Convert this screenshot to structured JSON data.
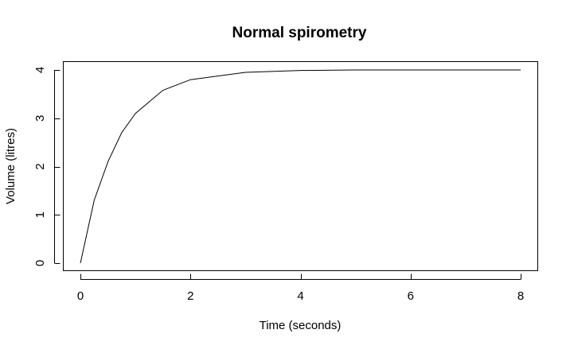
{
  "chart_data": {
    "type": "line",
    "title": "Normal spirometry",
    "xlabel": "Time (seconds)",
    "ylabel": "Volume (litres)",
    "xlim": [
      0,
      8
    ],
    "ylim": [
      0,
      4
    ],
    "x_ticks": [
      0,
      2,
      4,
      6,
      8
    ],
    "y_ticks": [
      0,
      1,
      2,
      3,
      4
    ],
    "x_tick_labels": [
      "0",
      "2",
      "4",
      "6",
      "8"
    ],
    "y_tick_labels": [
      "0",
      "1",
      "2",
      "3",
      "4"
    ],
    "grid": false,
    "series": [
      {
        "color": "#000000",
        "x": [
          0,
          0.25,
          0.5,
          0.75,
          1,
          1.5,
          2,
          3,
          4,
          5,
          6,
          7,
          8
        ],
        "y": [
          0,
          1.3,
          2.1,
          2.7,
          3.1,
          3.58,
          3.8,
          3.95,
          3.99,
          4.0,
          4.0,
          4.0,
          4.0
        ]
      }
    ]
  }
}
